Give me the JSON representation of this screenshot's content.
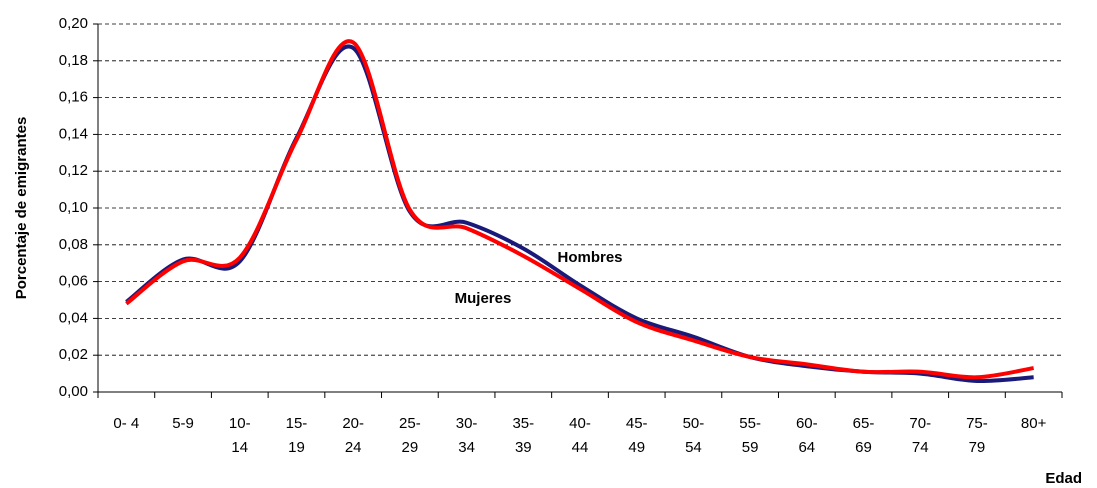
{
  "chart_data": {
    "type": "line",
    "y_label": "Porcentaje de emigrantes",
    "x_label": "Edad",
    "categories": [
      [
        "0- 4"
      ],
      [
        "5-9"
      ],
      [
        "10-",
        "14"
      ],
      [
        "15-",
        "19"
      ],
      [
        "20-",
        "24"
      ],
      [
        "25-",
        "29"
      ],
      [
        "30-",
        "34"
      ],
      [
        "35-",
        "39"
      ],
      [
        "40-",
        "44"
      ],
      [
        "45-",
        "49"
      ],
      [
        "50-",
        "54"
      ],
      [
        "55-",
        "59"
      ],
      [
        "60-",
        "64"
      ],
      [
        "65-",
        "69"
      ],
      [
        "70-",
        "74"
      ],
      [
        "75-",
        "79"
      ],
      [
        "80+"
      ]
    ],
    "series": [
      {
        "name": "Hombres",
        "color": "#1a1a7a",
        "values": [
          0.049,
          0.072,
          0.071,
          0.138,
          0.187,
          0.098,
          0.092,
          0.078,
          0.058,
          0.04,
          0.03,
          0.019,
          0.014,
          0.011,
          0.01,
          0.006,
          0.008
        ]
      },
      {
        "name": "Mujeres",
        "color": "#ff0000",
        "values": [
          0.048,
          0.071,
          0.073,
          0.137,
          0.19,
          0.099,
          0.089,
          0.074,
          0.056,
          0.038,
          0.028,
          0.019,
          0.015,
          0.011,
          0.011,
          0.008,
          0.013
        ]
      }
    ],
    "ylim": [
      0,
      0.2
    ],
    "yticks": [
      {
        "value": 0,
        "label": "0,00"
      },
      {
        "value": 0.02,
        "label": "0,02"
      },
      {
        "value": 0.04,
        "label": "0,04"
      },
      {
        "value": 0.06,
        "label": "0,06"
      },
      {
        "value": 0.08,
        "label": "0,08"
      },
      {
        "value": 0.1,
        "label": "0,10"
      },
      {
        "value": 0.12,
        "label": "0,12"
      },
      {
        "value": 0.14,
        "label": "0,14"
      },
      {
        "value": 0.16,
        "label": "0,16"
      },
      {
        "value": 0.18,
        "label": "0,18"
      },
      {
        "value": 0.2,
        "label": "0,20"
      }
    ],
    "grid": true
  }
}
